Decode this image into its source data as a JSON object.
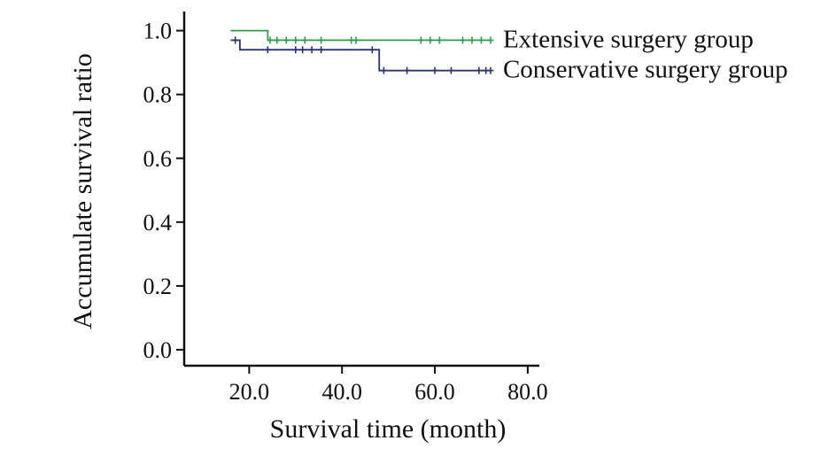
{
  "chart_data": {
    "type": "line",
    "title": "",
    "xlabel": "Survival time (month)",
    "ylabel": "Accumulate survival ratio",
    "xlim": [
      6,
      82.5
    ],
    "ylim": [
      -0.05,
      1.06
    ],
    "x_ticks": [
      20,
      40,
      60,
      80
    ],
    "x_tick_labels": [
      "20.0",
      "40.0",
      "60.0",
      "80.0"
    ],
    "y_ticks": [
      0,
      0.2,
      0.4,
      0.6,
      0.8,
      1.0
    ],
    "y_tick_labels": [
      "0.0",
      "0.2",
      "0.4",
      "0.6",
      "0.8",
      "1.0"
    ],
    "grid": false,
    "legend": "inline-labels-right",
    "series": [
      {
        "name": "Extensive surgery group",
        "color": "#2e9e4e",
        "step": [
          [
            16,
            1.0
          ],
          [
            24,
            1.0
          ],
          [
            24,
            0.97
          ],
          [
            72,
            0.97
          ]
        ],
        "censored": [
          [
            24.5,
            0.97
          ],
          [
            26,
            0.97
          ],
          [
            28,
            0.97
          ],
          [
            30,
            0.97
          ],
          [
            32,
            0.97
          ],
          [
            35.5,
            0.97
          ],
          [
            42,
            0.97
          ],
          [
            43,
            0.97
          ],
          [
            57,
            0.97
          ],
          [
            59,
            0.97
          ],
          [
            61,
            0.97
          ],
          [
            66,
            0.97
          ],
          [
            68,
            0.97
          ],
          [
            70,
            0.97
          ],
          [
            72,
            0.97
          ]
        ]
      },
      {
        "name": "Conservative surgery group",
        "color": "#2d3373",
        "step": [
          [
            16,
            0.97
          ],
          [
            18,
            0.97
          ],
          [
            18,
            0.94
          ],
          [
            48,
            0.94
          ],
          [
            48,
            0.875
          ],
          [
            72,
            0.875
          ]
        ],
        "censored": [
          [
            17,
            0.97
          ],
          [
            24,
            0.94
          ],
          [
            30,
            0.94
          ],
          [
            31.5,
            0.94
          ],
          [
            33.5,
            0.94
          ],
          [
            35.5,
            0.94
          ],
          [
            46.5,
            0.94
          ],
          [
            49,
            0.875
          ],
          [
            54,
            0.875
          ],
          [
            60,
            0.875
          ],
          [
            63.5,
            0.875
          ],
          [
            69.5,
            0.875
          ],
          [
            71,
            0.875
          ],
          [
            72,
            0.875
          ]
        ]
      }
    ]
  }
}
